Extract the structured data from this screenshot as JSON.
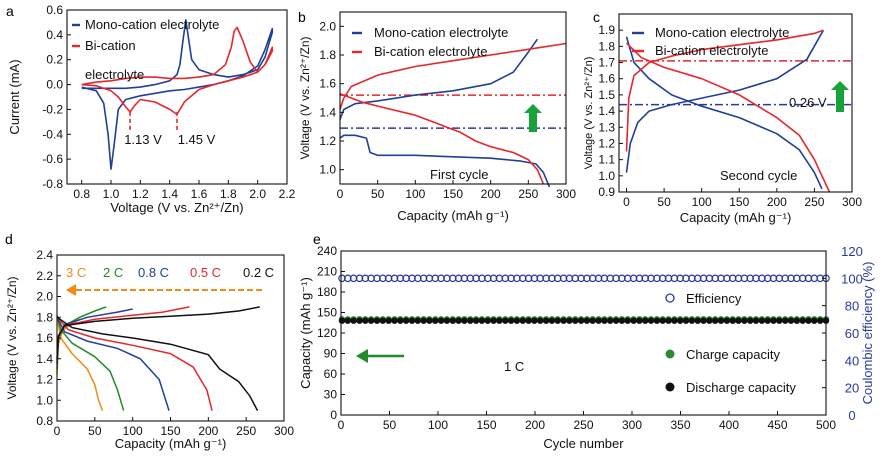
{
  "colors": {
    "blue": "#1f3f9a",
    "red": "#e8262a",
    "black": "#111111",
    "green": "#1f8a2a",
    "arrow_green": "#18a23a",
    "orange": "#f08a12",
    "navy": "#2a3a9c",
    "olive_green": "#2b8c2b"
  },
  "chart_data": [
    {
      "panel": "a",
      "type": "line",
      "subtype": "cyclic voltammogram",
      "xlabel": "Voltage (V vs. Zn²⁺/Zn)",
      "ylabel": "Current (mA)",
      "xlim": [
        0.7,
        2.2
      ],
      "ylim": [
        -0.8,
        0.6
      ],
      "xticks": [
        "0.8",
        "1.0",
        "1.2",
        "1.4",
        "1.6",
        "1.8",
        "2.0",
        "2.2"
      ],
      "yticks": [
        "0.6",
        "0.4",
        "0.2",
        "0.0",
        "-0.2",
        "-0.4",
        "-0.6",
        "-0.8"
      ],
      "legend": [
        "Mono-cation electrolyte",
        "Bi-cation electrolyte"
      ],
      "annotations": [
        "1.13 V",
        "1.45 V"
      ],
      "annotation_x": [
        1.13,
        1.45
      ],
      "series": [
        {
          "name": "Mono-cation electrolyte",
          "color": "blue",
          "x": [
            0.8,
            0.9,
            0.95,
            0.98,
            1.0,
            1.02,
            1.05,
            1.1,
            1.2,
            1.3,
            1.4,
            1.5,
            1.6,
            1.7,
            1.8,
            1.9,
            2.0,
            2.05,
            2.1,
            2.1,
            2.05,
            2.0,
            1.9,
            1.8,
            1.7,
            1.6,
            1.55,
            1.53,
            1.51,
            1.49,
            1.47,
            1.45,
            1.4,
            1.3,
            1.2,
            1.1,
            1.0,
            0.9,
            0.8
          ],
          "y": [
            -0.02,
            -0.05,
            -0.15,
            -0.4,
            -0.68,
            -0.5,
            -0.2,
            -0.12,
            -0.09,
            -0.07,
            -0.05,
            -0.04,
            -0.02,
            0.0,
            0.03,
            0.07,
            0.15,
            0.28,
            0.45,
            0.42,
            0.22,
            0.12,
            0.08,
            0.06,
            0.08,
            0.12,
            0.2,
            0.36,
            0.52,
            0.35,
            0.16,
            0.08,
            0.03,
            0.0,
            -0.02,
            -0.03,
            -0.03,
            -0.03,
            -0.03
          ]
        },
        {
          "name": "Bi-cation electrolyte",
          "color": "red",
          "x": [
            0.8,
            0.9,
            1.0,
            1.05,
            1.1,
            1.13,
            1.16,
            1.2,
            1.3,
            1.4,
            1.45,
            1.5,
            1.6,
            1.7,
            1.8,
            1.9,
            2.0,
            2.05,
            2.1,
            2.1,
            2.05,
            2.0,
            1.95,
            1.9,
            1.86,
            1.84,
            1.82,
            1.78,
            1.7,
            1.6,
            1.5,
            1.4,
            1.3,
            1.2,
            1.1,
            1.0,
            0.9,
            0.8
          ],
          "y": [
            0.0,
            -0.01,
            -0.05,
            -0.1,
            -0.18,
            -0.22,
            -0.17,
            -0.12,
            -0.14,
            -0.2,
            -0.24,
            -0.14,
            -0.04,
            0.0,
            0.03,
            0.06,
            0.1,
            0.16,
            0.3,
            0.27,
            0.16,
            0.1,
            0.18,
            0.35,
            0.46,
            0.43,
            0.3,
            0.16,
            0.08,
            0.06,
            0.05,
            0.05,
            0.06,
            0.06,
            0.05,
            0.03,
            0.02,
            0.0
          ]
        }
      ]
    },
    {
      "panel": "b",
      "type": "line",
      "subtype": "charge-discharge profile",
      "xlabel": "Capacity (mAh g⁻¹)",
      "ylabel": "Voltage (V vs. Zn²⁺/Zn)",
      "xlim": [
        0,
        300
      ],
      "ylim": [
        0.9,
        2.1
      ],
      "xticks": [
        "0",
        "50",
        "100",
        "150",
        "200",
        "250",
        "300"
      ],
      "yticks": [
        "2.0",
        "1.8",
        "1.6",
        "1.4",
        "1.2",
        "1.0"
      ],
      "legend": [
        "Mono-cation electrolyte",
        "Bi-cation  electrolyte"
      ],
      "caption": "First cycle",
      "reference_lines": [
        {
          "y": 1.52,
          "color": "red"
        },
        {
          "y": 1.29,
          "color": "navy"
        }
      ],
      "series": [
        {
          "name": "Mono-cation charge",
          "color": "blue",
          "x": [
            0,
            5,
            20,
            50,
            100,
            150,
            200,
            230,
            250,
            262
          ],
          "y": [
            1.35,
            1.42,
            1.46,
            1.48,
            1.52,
            1.55,
            1.6,
            1.68,
            1.82,
            1.91
          ]
        },
        {
          "name": "Mono-cation discharge",
          "color": "blue",
          "x": [
            0,
            5,
            20,
            35,
            40,
            50,
            100,
            150,
            200,
            240,
            260,
            270,
            278
          ],
          "y": [
            1.22,
            1.24,
            1.24,
            1.22,
            1.12,
            1.1,
            1.1,
            1.09,
            1.08,
            1.06,
            1.04,
            0.98,
            0.88
          ]
        },
        {
          "name": "Bi-cation charge",
          "color": "red",
          "x": [
            0,
            5,
            15,
            50,
            100,
            150,
            200,
            250,
            300
          ],
          "y": [
            1.42,
            1.5,
            1.58,
            1.66,
            1.72,
            1.76,
            1.8,
            1.84,
            1.88
          ]
        },
        {
          "name": "Bi-cation discharge",
          "color": "red",
          "x": [
            0,
            10,
            30,
            60,
            100,
            130,
            160,
            180,
            200,
            230,
            250,
            262,
            270
          ],
          "y": [
            1.53,
            1.51,
            1.47,
            1.43,
            1.38,
            1.32,
            1.26,
            1.2,
            1.16,
            1.12,
            1.07,
            1.0,
            0.9
          ]
        }
      ]
    },
    {
      "panel": "c",
      "type": "line",
      "subtype": "charge-discharge profile",
      "xlabel": "Capacity (mAh g⁻¹)",
      "ylabel": "Voltage (V vs. Zn²⁺/Zn)",
      "xlim": [
        -10,
        300
      ],
      "ylim": [
        0.9,
        2.0
      ],
      "xticks": [
        "0",
        "50",
        "100",
        "150",
        "200",
        "250",
        "300"
      ],
      "yticks": [
        "1.9",
        "1.8",
        "1.7",
        "1.6",
        "1.5",
        "1.4",
        "1.3",
        "1.2",
        "1.1",
        "1.0",
        "0.9"
      ],
      "legend": [
        "Mono-cation electrolyte",
        "Bi-cation electrolyte"
      ],
      "caption": "Second cycle",
      "annotations": [
        "0.26 V"
      ],
      "reference_lines": [
        {
          "y": 1.71,
          "color": "red"
        },
        {
          "y": 1.44,
          "color": "navy"
        }
      ],
      "series": [
        {
          "name": "Mono-cation charge",
          "color": "blue",
          "x": [
            0,
            5,
            15,
            30,
            60,
            100,
            150,
            200,
            240,
            262
          ],
          "y": [
            1.02,
            1.2,
            1.33,
            1.4,
            1.44,
            1.48,
            1.53,
            1.6,
            1.72,
            1.9
          ]
        },
        {
          "name": "Mono-cation discharge",
          "color": "blue",
          "x": [
            0,
            10,
            30,
            60,
            100,
            150,
            200,
            230,
            250,
            260
          ],
          "y": [
            1.86,
            1.7,
            1.6,
            1.5,
            1.43,
            1.36,
            1.26,
            1.16,
            1.02,
            0.92
          ]
        },
        {
          "name": "Bi-cation charge",
          "color": "red",
          "x": [
            0,
            3,
            10,
            30,
            60,
            100,
            150,
            200,
            250,
            262
          ],
          "y": [
            1.15,
            1.48,
            1.62,
            1.7,
            1.74,
            1.78,
            1.81,
            1.84,
            1.88,
            1.9
          ]
        },
        {
          "name": "Bi-cation discharge",
          "color": "red",
          "x": [
            0,
            20,
            50,
            100,
            150,
            200,
            230,
            250,
            262,
            270
          ],
          "y": [
            1.82,
            1.73,
            1.67,
            1.6,
            1.5,
            1.36,
            1.25,
            1.1,
            0.98,
            0.9
          ]
        }
      ]
    },
    {
      "panel": "d",
      "type": "line",
      "subtype": "rate charge-discharge profiles",
      "xlabel": "Capacity (mAh g⁻¹)",
      "ylabel": "Voltage (V vs. Zn²⁺/Zn)",
      "xlim": [
        0,
        300
      ],
      "ylim": [
        0.8,
        2.4
      ],
      "xticks": [
        "0",
        "50",
        "100",
        "150",
        "200",
        "250",
        "300"
      ],
      "yticks": [
        "2.4",
        "2.2",
        "2.0",
        "1.8",
        "1.6",
        "1.4",
        "1.2",
        "1.0",
        "0.8"
      ],
      "series": [
        {
          "name": "3 C",
          "color": "orange",
          "charge": {
            "x": [
              0,
              2,
              8,
              20,
              30
            ],
            "y": [
              1.25,
              1.55,
              1.68,
              1.74,
              1.78
            ]
          },
          "discharge": {
            "x": [
              0,
              5,
              20,
              40,
              50,
              55,
              60
            ],
            "y": [
              1.8,
              1.6,
              1.45,
              1.3,
              1.15,
              1.0,
              0.9
            ]
          }
        },
        {
          "name": "2 C",
          "color": "green",
          "charge": {
            "x": [
              0,
              2,
              10,
              30,
              50,
              65
            ],
            "y": [
              1.3,
              1.6,
              1.72,
              1.8,
              1.86,
              1.9
            ]
          },
          "discharge": {
            "x": [
              0,
              5,
              20,
              50,
              70,
              80,
              88
            ],
            "y": [
              1.82,
              1.68,
              1.55,
              1.42,
              1.28,
              1.1,
              0.9
            ]
          }
        },
        {
          "name": "0.8 C",
          "color": "blue",
          "charge": {
            "x": [
              0,
              2,
              10,
              40,
              80,
              100
            ],
            "y": [
              1.35,
              1.62,
              1.73,
              1.8,
              1.85,
              1.88
            ]
          },
          "discharge": {
            "x": [
              0,
              10,
              40,
              80,
              110,
              135,
              148
            ],
            "y": [
              1.8,
              1.66,
              1.57,
              1.5,
              1.4,
              1.2,
              0.9
            ]
          }
        },
        {
          "name": "0.5 C",
          "color": "red",
          "charge": {
            "x": [
              0,
              2,
              10,
              50,
              100,
              140,
              175
            ],
            "y": [
              1.38,
              1.62,
              1.72,
              1.78,
              1.82,
              1.85,
              1.9
            ]
          },
          "discharge": {
            "x": [
              0,
              15,
              50,
              100,
              150,
              180,
              198,
              205
            ],
            "y": [
              1.8,
              1.68,
              1.6,
              1.53,
              1.45,
              1.32,
              1.1,
              0.9
            ]
          }
        },
        {
          "name": "0.2 C",
          "color": "black",
          "charge": {
            "x": [
              0,
              2,
              10,
              50,
              100,
              150,
              200,
              240,
              268
            ],
            "y": [
              1.4,
              1.62,
              1.72,
              1.76,
              1.79,
              1.81,
              1.83,
              1.86,
              1.9
            ]
          },
          "discharge": {
            "x": [
              0,
              20,
              60,
              100,
              150,
              200,
              215,
              240,
              255,
              265
            ],
            "y": [
              1.8,
              1.7,
              1.64,
              1.6,
              1.54,
              1.44,
              1.3,
              1.18,
              1.04,
              0.9
            ]
          }
        }
      ]
    },
    {
      "panel": "e",
      "type": "scatter",
      "subtype": "cycling stability",
      "xlabel": "Cycle number",
      "ylabel": "Capacity (mAh g⁻¹)",
      "y2label": "Coulombic efficiency (%)",
      "xlim": [
        0,
        500
      ],
      "ylim": [
        0,
        240
      ],
      "y2lim": [
        0,
        120
      ],
      "xticks": [
        "0",
        "50",
        "100",
        "150",
        "200",
        "250",
        "300",
        "350",
        "400",
        "450",
        "500"
      ],
      "yticks": [
        "240",
        "210",
        "180",
        "150",
        "120",
        "90",
        "60",
        "30",
        "0"
      ],
      "y2ticks": [
        "120",
        "100",
        "80",
        "60",
        "40",
        "20",
        "0"
      ],
      "legend": [
        "Efficiency",
        "Charge capacity",
        "Discharge capacity"
      ],
      "rate_label": "1 C",
      "series": [
        {
          "name": "Efficiency",
          "color": "navy",
          "axis": "right",
          "marker": "open-circle",
          "x_range": [
            1,
            500
          ],
          "value": 100
        },
        {
          "name": "Charge capacity",
          "color": "olive_green",
          "axis": "left",
          "marker": "filled-circle",
          "x_range": [
            1,
            500
          ],
          "value": 140
        },
        {
          "name": "Discharge capacity",
          "color": "black",
          "axis": "left",
          "marker": "filled-circle",
          "x_range": [
            1,
            500
          ],
          "value": 138
        }
      ]
    }
  ]
}
